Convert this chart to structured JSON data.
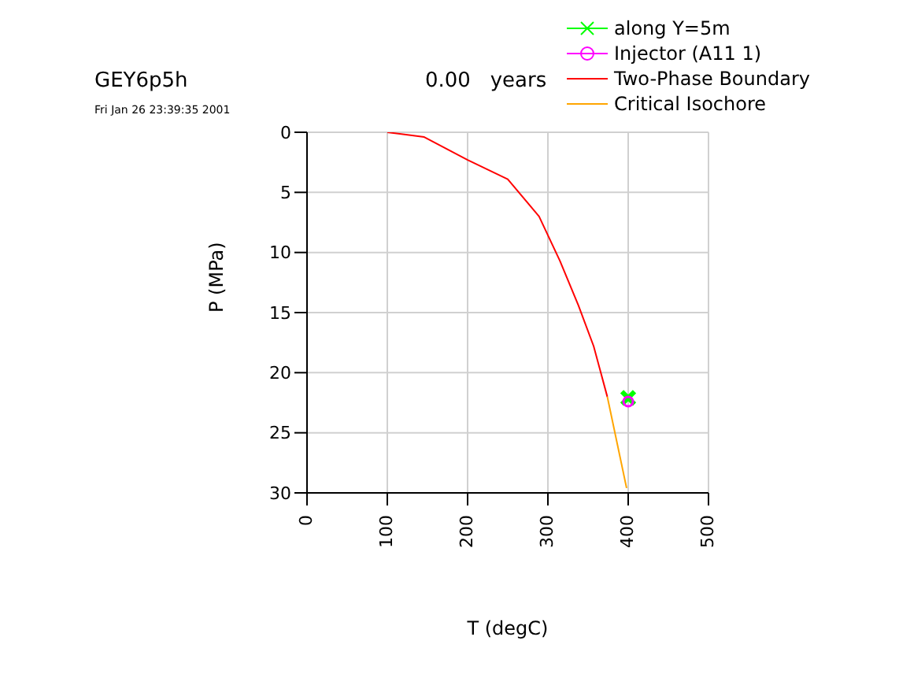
{
  "chart_data": {
    "type": "line",
    "title": "GEY6p5h",
    "subtitle": "0.00   years",
    "annotations": [
      "Fri Jan 26 23:39:35 2001"
    ],
    "xlabel": "T (degC)",
    "ylabel": "P (MPa)",
    "xlim": [
      0,
      500
    ],
    "xticks": [
      0,
      100,
      200,
      300,
      400,
      500
    ],
    "ylim": [
      30,
      0
    ],
    "yticks": [
      0,
      5,
      10,
      15,
      20,
      25,
      30
    ],
    "grid": true,
    "legend": "top right",
    "series": [
      {
        "name": "along Y=5m",
        "type": "scatter",
        "marker": "cross",
        "color": "#00ff00",
        "x": [
          400
        ],
        "values": [
          22.1
        ]
      },
      {
        "name": "Injector (A11 1)",
        "type": "scatter",
        "marker": "circle",
        "color": "#ff00ff",
        "x": [
          400
        ],
        "values": [
          22.4
        ]
      },
      {
        "name": "Two-Phase Boundary",
        "marker": "none",
        "color": "#ff0000",
        "x": [
          100,
          146,
          200,
          250,
          289,
          315,
          338,
          357,
          374
        ],
        "values": [
          0,
          0.4,
          2.3,
          3.9,
          7,
          10.7,
          14.4,
          17.8,
          22
        ]
      },
      {
        "name": "Critical Isochore",
        "marker": "none",
        "color": "#ffa500",
        "x": [
          374,
          398
        ],
        "values": [
          22,
          29.6
        ]
      }
    ]
  }
}
